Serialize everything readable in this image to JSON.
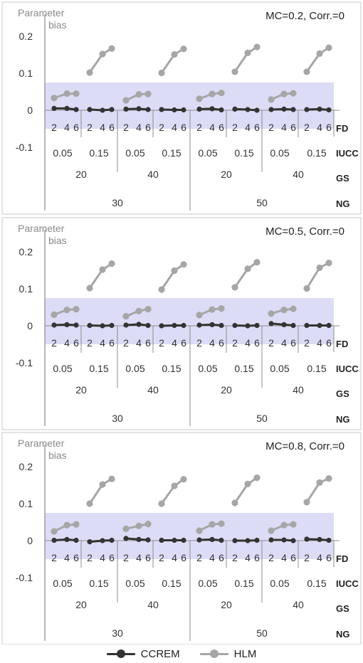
{
  "axis": {
    "ylabel_line1": "Parameter",
    "ylabel_line2": "bias",
    "ylim": [
      -0.15,
      0.22
    ],
    "yticks": [
      0.2,
      0.1,
      0,
      -0.1
    ],
    "ytick_labels": [
      "0.2",
      "0.1",
      "0",
      "-0.1"
    ],
    "grid": false
  },
  "factor_labels": [
    "FD",
    "IUCC",
    "GS",
    "NG"
  ],
  "fd_values": [
    "2",
    "4",
    "6"
  ],
  "iucc_values": [
    "0.05",
    "0.15"
  ],
  "gs_values": [
    "20",
    "40"
  ],
  "ng_values": [
    "30",
    "50"
  ],
  "highlight_band": [
    -0.05,
    0.075
  ],
  "colors": {
    "ccrem": "#333333",
    "hlm": "#a6a6a6",
    "band": "#dcdcf7",
    "axis": "#8c8c8c"
  },
  "legend": {
    "position": "bottom-center",
    "items": [
      {
        "label": "CCREM",
        "color": "#333333"
      },
      {
        "label": "HLM",
        "color": "#a6a6a6"
      }
    ]
  },
  "chart_data": [
    {
      "type": "line",
      "title": "MC=0.2, Corr.=0",
      "series": [
        {
          "name": "CCREM",
          "values": [
            [
              0.005,
              0.005,
              0.002
            ],
            [
              0.002,
              0,
              0.002
            ],
            [
              0.003,
              0.004,
              0.002
            ],
            [
              0.002,
              0.001,
              0.001
            ],
            [
              0.003,
              0.004,
              0.001
            ],
            [
              0.003,
              0.002,
              0
            ],
            [
              0.002,
              0.003,
              0.002
            ],
            [
              0.002,
              0.003,
              0.001
            ]
          ]
        },
        {
          "name": "HLM",
          "values": [
            [
              0.033,
              0.045,
              0.045
            ],
            [
              0.102,
              0.152,
              0.167
            ],
            [
              0.027,
              0.043,
              0.044
            ],
            [
              0.101,
              0.151,
              0.166
            ],
            [
              0.031,
              0.044,
              0.047
            ],
            [
              0.104,
              0.155,
              0.171
            ],
            [
              0.029,
              0.044,
              0.046
            ],
            [
              0.104,
              0.153,
              0.169
            ]
          ]
        }
      ]
    },
    {
      "type": "line",
      "title": "MC=0.5, Corr.=0",
      "series": [
        {
          "name": "CCREM",
          "values": [
            [
              0.002,
              0.003,
              0.002
            ],
            [
              0.001,
              0,
              0.001
            ],
            [
              0.002,
              0.004,
              0.001
            ],
            [
              0,
              0.001,
              0.001
            ],
            [
              0.002,
              0.003,
              0.001
            ],
            [
              0.001,
              0,
              0.001
            ],
            [
              0.006,
              0.003,
              0.001
            ],
            [
              0.001,
              0.001,
              0.001
            ]
          ]
        },
        {
          "name": "HLM",
          "values": [
            [
              0.03,
              0.043,
              0.045
            ],
            [
              0.102,
              0.152,
              0.168
            ],
            [
              0.026,
              0.04,
              0.045
            ],
            [
              0.098,
              0.149,
              0.166
            ],
            [
              0.029,
              0.044,
              0.047
            ],
            [
              0.104,
              0.154,
              0.172
            ],
            [
              0.033,
              0.043,
              0.046
            ],
            [
              0.101,
              0.157,
              0.17
            ]
          ]
        }
      ]
    },
    {
      "type": "line",
      "title": "MC=0.8, Corr.=0",
      "series": [
        {
          "name": "CCREM",
          "values": [
            [
              0.001,
              0.003,
              0.001
            ],
            [
              -0.003,
              0,
              0.001
            ],
            [
              0.006,
              0.003,
              0.002
            ],
            [
              0.001,
              0.001,
              0.001
            ],
            [
              0.002,
              0.003,
              0.001
            ],
            [
              0,
              0,
              0.001
            ],
            [
              0.002,
              0.002,
              0
            ],
            [
              0.004,
              0.003,
              0.001
            ]
          ]
        },
        {
          "name": "HLM",
          "values": [
            [
              0.025,
              0.042,
              0.044
            ],
            [
              0.1,
              0.152,
              0.167
            ],
            [
              0.032,
              0.04,
              0.045
            ],
            [
              0.1,
              0.148,
              0.166
            ],
            [
              0.027,
              0.044,
              0.046
            ],
            [
              0.102,
              0.153,
              0.17
            ],
            [
              0.027,
              0.042,
              0.044
            ],
            [
              0.104,
              0.157,
              0.168
            ]
          ]
        }
      ]
    }
  ]
}
